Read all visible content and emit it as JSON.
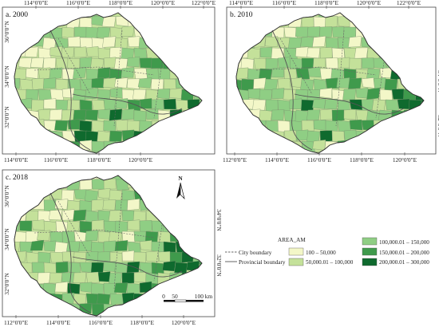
{
  "panels": [
    {
      "label": "a. 2000",
      "top_ticks": [
        "114°0'0\"E",
        "116°0'0\"E",
        "118°0'0\"E",
        "120°0'0\"E",
        "122°0'0\"E"
      ],
      "bottom_ticks": [
        "114°0'0\"E",
        "116°0'0\"E",
        "118°0'0\"E",
        "120°0'0\"E"
      ],
      "left_ticks": [
        "36°0'0\"N",
        "34°0'0\"N",
        "32°0'0\"N"
      ],
      "right_ticks": []
    },
    {
      "label": "b. 2010",
      "top_ticks": [
        "114°0'0\"E",
        "116°0'0\"E",
        "118°0'0\"E",
        "120°0'0\"E",
        "122°0'0\"E"
      ],
      "bottom_ticks": [
        "112°0'0\"E",
        "114°0'0\"E",
        "116°0'0\"E",
        "118°0'0\"E",
        "120°0'0\"E"
      ],
      "left_ticks": [],
      "right_ticks": [
        "34°0'0\"N",
        "32°0'0\"N"
      ]
    },
    {
      "label": "c. 2018",
      "top_ticks": [],
      "bottom_ticks": [
        "112°0'0\"E",
        "114°0'0\"E",
        "116°0'0\"E",
        "118°0'0\"E",
        "120°0'0\"E"
      ],
      "left_ticks": [
        "36°0'0\"N",
        "34°0'0\"N",
        "32°0'0\"N"
      ],
      "right_ticks": [
        "34°0'0\"N",
        "32°0'0\"N"
      ]
    }
  ],
  "north_arrow": "N",
  "scale_bar": [
    "0",
    "50",
    "100 km"
  ],
  "legend": {
    "title": "AREA_AM",
    "lines": [
      {
        "label": "City boundary",
        "style": "dashed",
        "color": "#666666"
      },
      {
        "label": "Provincial boundary",
        "style": "solid",
        "color": "#555555"
      }
    ],
    "classes": [
      {
        "label": "100 – 50,000",
        "color": "#f3f7c8"
      },
      {
        "label": "50,000.01 – 100,000",
        "color": "#c4e19a"
      },
      {
        "label": "100,000.01 – 150,000",
        "color": "#8fce84"
      },
      {
        "label": "150,000.01 – 200,000",
        "color": "#3f9a4c"
      },
      {
        "label": "200,000.01 – 300,000",
        "color": "#0f6a2e"
      }
    ]
  }
}
